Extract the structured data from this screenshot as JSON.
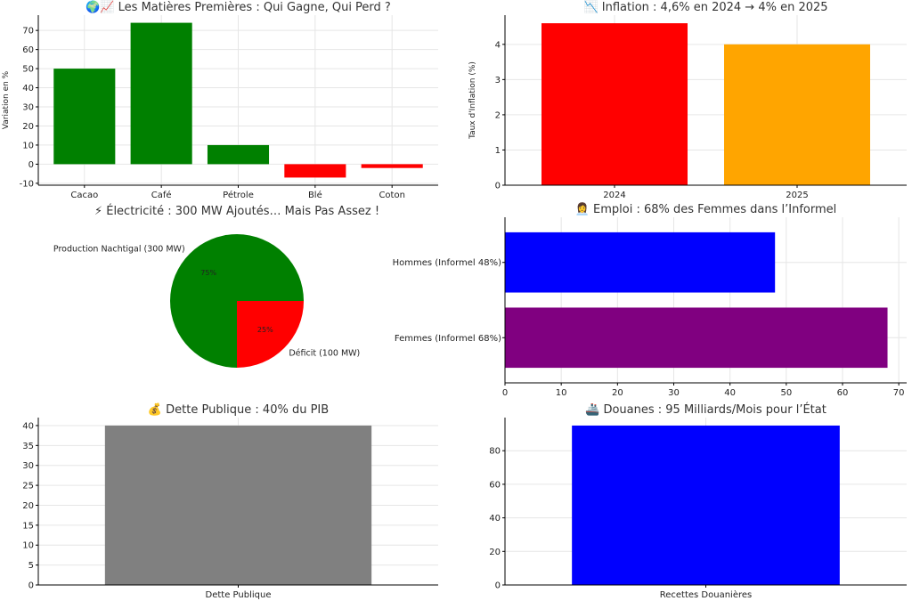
{
  "chart_data": [
    {
      "id": "matieres",
      "type": "bar",
      "title": "🌍📈 Les Matières Premières : Qui Gagne, Qui Perd ?",
      "ylabel": "Variation en %",
      "xlabel": "",
      "categories": [
        "Cacao",
        "Café",
        "Pétrole",
        "Blé",
        "Coton"
      ],
      "values": [
        50,
        74,
        10,
        -7,
        -2
      ],
      "colors": [
        "#008000",
        "#008000",
        "#008000",
        "#ff0000",
        "#ff0000"
      ],
      "ylim": [
        -11,
        78
      ],
      "yticks": [
        -10,
        0,
        10,
        20,
        30,
        40,
        50,
        60,
        70
      ],
      "grid": true
    },
    {
      "id": "inflation",
      "type": "bar",
      "title": "📉 Inflation : 4,6% en 2024 → 4% en 2025",
      "ylabel": "Taux d'Inflation (%)",
      "xlabel": "",
      "categories": [
        "2024",
        "2025"
      ],
      "values": [
        4.6,
        4.0
      ],
      "colors": [
        "#ff0000",
        "#ffa500"
      ],
      "ylim": [
        0,
        4.83
      ],
      "yticks": [
        0,
        1,
        2,
        3,
        4
      ],
      "grid": true
    },
    {
      "id": "electricite",
      "type": "pie",
      "title": "⚡ Électricité : 300 MW Ajoutés… Mais Pas Assez !",
      "labels": [
        "Production Nachtigal (300 MW)",
        "Déficit (100 MW)"
      ],
      "values": [
        300,
        100
      ],
      "percent_labels": [
        "75%",
        "25%"
      ],
      "colors": [
        "#008000",
        "#ff0000"
      ]
    },
    {
      "id": "emploi",
      "type": "bar",
      "orientation": "horizontal",
      "title": "👩‍💼 Emploi : 68% des Femmes dans l’Informel",
      "categories": [
        "Femmes (Informel 68%)",
        "Hommes (Informel 48%)"
      ],
      "values": [
        68,
        48
      ],
      "colors": [
        "#800080",
        "#0000ff"
      ],
      "xlim": [
        0,
        71.4
      ],
      "xticks": [
        0,
        10,
        20,
        30,
        40,
        50,
        60,
        70
      ],
      "grid": true
    },
    {
      "id": "dette",
      "type": "bar",
      "title": "💰 Dette Publique : 40% du PIB",
      "categories": [
        "Dette Publique"
      ],
      "values": [
        40
      ],
      "colors": [
        "#808080"
      ],
      "ylim": [
        0,
        42
      ],
      "yticks": [
        0,
        5,
        10,
        15,
        20,
        25,
        30,
        35,
        40
      ],
      "grid": true
    },
    {
      "id": "douanes",
      "type": "bar",
      "title": "🚢 Douanes : 95 Milliards/Mois pour l’État",
      "categories": [
        "Recettes Douanières"
      ],
      "values": [
        95
      ],
      "colors": [
        "#0000ff"
      ],
      "ylim": [
        0,
        99.75
      ],
      "yticks": [
        0,
        20,
        40,
        60,
        80
      ],
      "grid": true
    }
  ]
}
